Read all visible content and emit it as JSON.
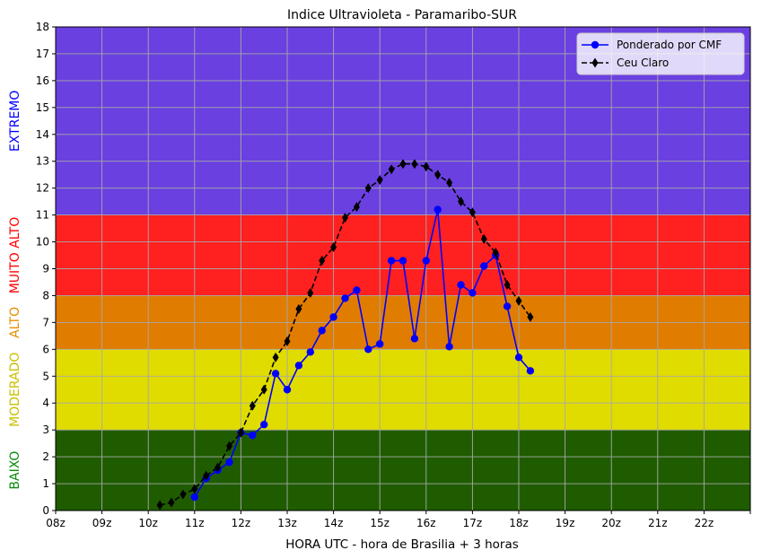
{
  "chart_data": {
    "type": "line",
    "title": "Indice Ultravioleta - Paramaribo-SUR",
    "xlabel": "HORA UTC - hora de Brasilia + 3 horas",
    "ylabel": "",
    "xlim": [
      8,
      23
    ],
    "ylim": [
      0,
      18
    ],
    "x_ticks": [
      "08z",
      "09z",
      "10z",
      "11z",
      "12z",
      "13z",
      "14z",
      "15z",
      "16z",
      "17z",
      "18z",
      "19z",
      "20z",
      "21z",
      "22z",
      ""
    ],
    "y_ticks": [
      "0",
      "1",
      "2",
      "3",
      "4",
      "5",
      "6",
      "7",
      "8",
      "9",
      "10",
      "11",
      "12",
      "13",
      "14",
      "15",
      "16",
      "17",
      "18"
    ],
    "grid": true,
    "legend_position": "top-right",
    "bands": [
      {
        "name": "BAIXO",
        "from": 0,
        "to": 3,
        "fill": "#1f5c00",
        "label_color": "#0a8a0a"
      },
      {
        "name": "MODERADO",
        "from": 3,
        "to": 6,
        "fill": "#e0dc00",
        "label_color": "#c8c000"
      },
      {
        "name": "ALTO",
        "from": 6,
        "to": 8,
        "fill": "#e07c00",
        "label_color": "#e09000"
      },
      {
        "name": "MUITO ALTO",
        "from": 8,
        "to": 11,
        "fill": "#ff2020",
        "label_color": "#ff0000"
      },
      {
        "name": "EXTREMO",
        "from": 11,
        "to": 18,
        "fill": "#6a40e0",
        "label_color": "#0000ff"
      }
    ],
    "series": [
      {
        "name": "Ponderado por CMF",
        "color": "#0000ff",
        "marker": "circle",
        "line": "solid",
        "x": [
          11.0,
          11.25,
          11.5,
          11.75,
          12.0,
          12.25,
          12.5,
          12.75,
          13.0,
          13.25,
          13.5,
          13.75,
          14.0,
          14.25,
          14.5,
          14.75,
          15.0,
          15.25,
          15.5,
          15.75,
          16.0,
          16.25,
          16.5,
          16.75,
          17.0,
          17.25,
          17.5,
          17.75,
          18.0,
          18.25
        ],
        "y": [
          0.5,
          1.2,
          1.5,
          1.8,
          2.9,
          2.8,
          3.2,
          5.1,
          4.5,
          5.4,
          5.9,
          6.7,
          7.2,
          7.9,
          8.2,
          6.0,
          6.2,
          9.3,
          9.3,
          6.4,
          9.3,
          11.2,
          6.1,
          8.4,
          8.1,
          9.1,
          9.5,
          7.6,
          5.7,
          5.2
        ]
      },
      {
        "name": "Ceu Claro",
        "color": "#000000",
        "marker": "diamond",
        "line": "dashed",
        "x": [
          10.25,
          10.5,
          10.75,
          11.0,
          11.25,
          11.5,
          11.75,
          12.0,
          12.25,
          12.5,
          12.75,
          13.0,
          13.25,
          13.5,
          13.75,
          14.0,
          14.25,
          14.5,
          14.75,
          15.0,
          15.25,
          15.5,
          15.75,
          16.0,
          16.25,
          16.5,
          16.75,
          17.0,
          17.25,
          17.5,
          17.75,
          18.0,
          18.25
        ],
        "y": [
          0.2,
          0.3,
          0.6,
          0.8,
          1.3,
          1.6,
          2.4,
          2.9,
          3.9,
          4.5,
          5.7,
          6.3,
          7.5,
          8.1,
          9.3,
          9.8,
          10.9,
          11.3,
          12.0,
          12.3,
          12.7,
          12.9,
          12.9,
          12.8,
          12.5,
          12.2,
          11.5,
          11.1,
          10.1,
          9.6,
          8.4,
          7.8,
          7.2
        ]
      }
    ]
  }
}
